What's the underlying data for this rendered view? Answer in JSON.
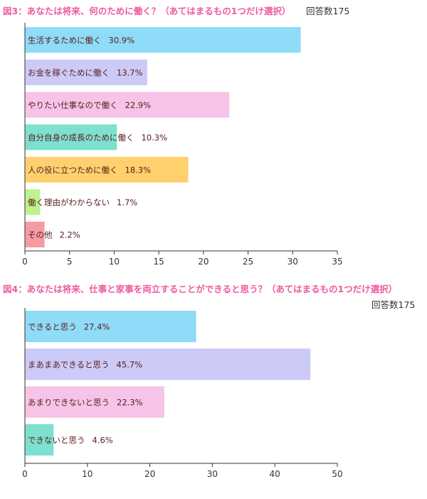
{
  "chart_data": [
    {
      "type": "bar",
      "orientation": "horizontal",
      "title": "図3：あなたは将来、何のために働く？（あてはまるもの1つだけ選択）",
      "count_label": "回答数175",
      "xlim": [
        0,
        35
      ],
      "xticks": [
        0,
        5,
        10,
        15,
        20,
        25,
        30,
        35
      ],
      "grid": false,
      "categories": [
        "生活するために働く",
        "お金を稼ぐために働く",
        "やりたい仕事なので働く",
        "自分自身の成長のために働く",
        "人の役に立つために働く",
        "働く理由がわからない",
        "その他"
      ],
      "values": [
        30.9,
        13.7,
        22.9,
        10.3,
        18.3,
        1.7,
        2.2
      ],
      "value_labels": [
        "30.9%",
        "13.7%",
        "22.9%",
        "10.3%",
        "18.3%",
        "1.7%",
        "2.2%"
      ],
      "colors": [
        "#8fdcf8",
        "#cccaf6",
        "#f7c3e7",
        "#7ee0cf",
        "#fed06e",
        "#bff18d",
        "#f59ba4"
      ]
    },
    {
      "type": "bar",
      "orientation": "horizontal",
      "title": "図4：あなたは将来、仕事と家事を両立することができると思う？（あてはまるもの1つだけ選択）",
      "count_label": "回答数175",
      "xlim": [
        0,
        50
      ],
      "xticks": [
        0,
        10,
        20,
        30,
        40,
        50
      ],
      "grid": false,
      "categories": [
        "できると思う",
        "まあまあできると思う",
        "あまりできないと思う",
        "できないと思う"
      ],
      "values": [
        27.4,
        45.7,
        22.3,
        4.6
      ],
      "value_labels": [
        "27.4%",
        "45.7%",
        "22.3%",
        "4.6%"
      ],
      "colors": [
        "#8fdcf8",
        "#cccaf6",
        "#f7c3e7",
        "#7ee0cf"
      ]
    }
  ],
  "colors": {
    "title": "#ee5b9f",
    "label_text": "#5a1e1e",
    "axis": "#333333",
    "tick_text": "#333333"
  }
}
